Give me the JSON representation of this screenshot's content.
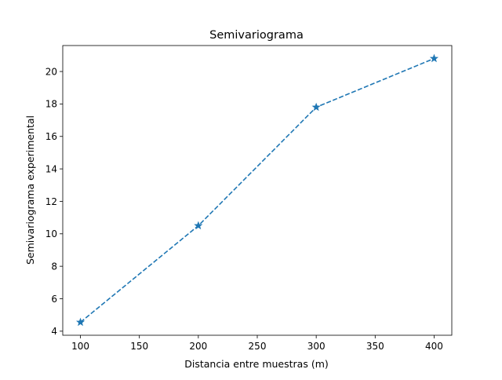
{
  "chart_data": {
    "type": "line",
    "title": "Semivariograma",
    "xlabel": "Distancia entre muestras (m)",
    "ylabel": "Semivariograma experimental",
    "x": [
      100,
      200,
      300,
      400
    ],
    "series": [
      {
        "values": [
          4.55,
          10.5,
          17.8,
          20.8
        ],
        "color": "#1f77b4",
        "line_style": "dashed",
        "marker": "star"
      }
    ],
    "xlim": [
      85,
      415
    ],
    "ylim": [
      3.75,
      21.6
    ],
    "xticks": [
      100,
      150,
      200,
      250,
      300,
      350,
      400
    ],
    "yticks": [
      4,
      6,
      8,
      10,
      12,
      14,
      16,
      18,
      20
    ],
    "grid": false,
    "legend": "none"
  }
}
